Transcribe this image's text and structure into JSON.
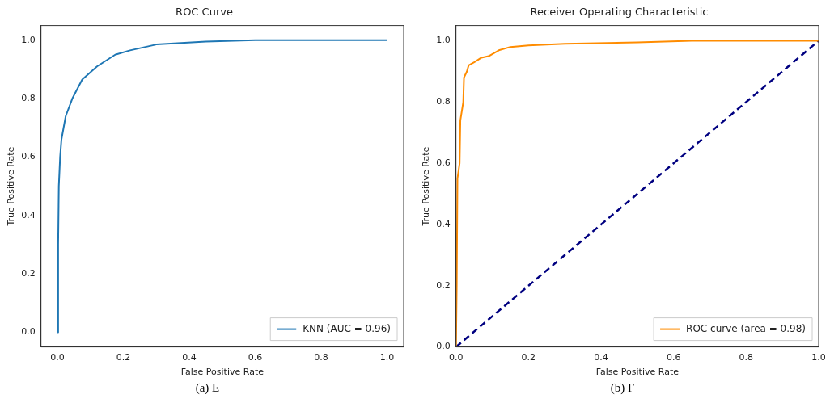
{
  "chart_data": [
    {
      "type": "line",
      "title": "ROC Curve",
      "xlabel": "False Positive Rate",
      "ylabel": "True Positive Rate",
      "xlim": [
        -0.05,
        1.05
      ],
      "ylim": [
        -0.05,
        1.05
      ],
      "xticks": [
        {
          "value": 0,
          "label": "0.0"
        },
        {
          "value": 0.2,
          "label": "0.2"
        },
        {
          "value": 0.4,
          "label": "0.4"
        },
        {
          "value": 0.6,
          "label": "0.6"
        },
        {
          "value": 0.8,
          "label": "0.8"
        },
        {
          "value": 1,
          "label": "1.0"
        }
      ],
      "yticks": [
        {
          "value": 0,
          "label": "0.0"
        },
        {
          "value": 0.2,
          "label": "0.2"
        },
        {
          "value": 0.4,
          "label": "0.4"
        },
        {
          "value": 0.6,
          "label": "0.6"
        },
        {
          "value": 0.8,
          "label": "0.8"
        },
        {
          "value": 1,
          "label": "1.0"
        }
      ],
      "grid": false,
      "legend": "bottom right",
      "marker": "none",
      "annotations": [
        "(a) E"
      ],
      "series": [
        {
          "name": "KNN (AUC = 0.96)",
          "color": "#1f77b4",
          "x": [
            0,
            0.002,
            0.004,
            0.008,
            0.012,
            0.025,
            0.045,
            0.075,
            0.12,
            0.175,
            0.22,
            0.3,
            0.45,
            0.6,
            1
          ],
          "values": [
            0,
            0.3,
            0.5,
            0.6,
            0.66,
            0.74,
            0.8,
            0.865,
            0.91,
            0.95,
            0.965,
            0.985,
            0.995,
            1.0,
            1.0
          ]
        }
      ]
    },
    {
      "type": "line",
      "title": "Receiver Operating Characteristic",
      "xlabel": "False Positive Rate",
      "ylabel": "True Positive Rate",
      "xlim": [
        0,
        1
      ],
      "ylim": [
        0,
        1.05
      ],
      "xticks": [
        {
          "value": 0,
          "label": "0.0"
        },
        {
          "value": 0.2,
          "label": "0.2"
        },
        {
          "value": 0.4,
          "label": "0.4"
        },
        {
          "value": 0.6,
          "label": "0.6"
        },
        {
          "value": 0.8,
          "label": "0.8"
        },
        {
          "value": 1,
          "label": "1.0"
        }
      ],
      "yticks": [
        {
          "value": 0,
          "label": "0.0"
        },
        {
          "value": 0.2,
          "label": "0.2"
        },
        {
          "value": 0.4,
          "label": "0.4"
        },
        {
          "value": 0.6,
          "label": "0.6"
        },
        {
          "value": 0.8,
          "label": "0.8"
        },
        {
          "value": 1,
          "label": "1.0"
        }
      ],
      "grid": false,
      "legend": "bottom right",
      "marker": "none",
      "annotations": [
        "(b) F"
      ],
      "series": [
        {
          "name": "ROC curve (area = 0.98)",
          "color": "#ff8c00",
          "x": [
            0,
            0.002,
            0.004,
            0.01,
            0.012,
            0.02,
            0.022,
            0.03,
            0.035,
            0.05,
            0.07,
            0.09,
            0.12,
            0.15,
            0.2,
            0.3,
            0.5,
            0.65,
            1
          ],
          "values": [
            0,
            0.2,
            0.55,
            0.6,
            0.74,
            0.8,
            0.88,
            0.9,
            0.92,
            0.93,
            0.945,
            0.95,
            0.97,
            0.98,
            0.985,
            0.99,
            0.995,
            1.0,
            1.0
          ]
        },
        {
          "color": "#000080",
          "line_style": "dashed",
          "x": [
            0,
            1
          ],
          "values": [
            0,
            1
          ]
        }
      ]
    }
  ]
}
